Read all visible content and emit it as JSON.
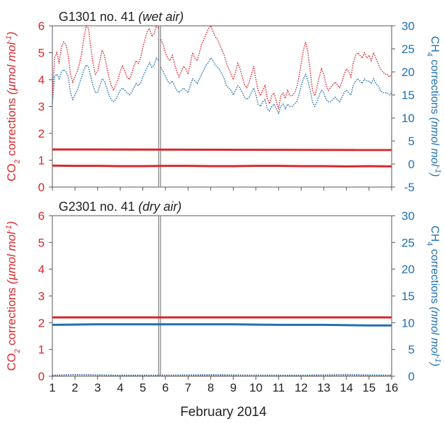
{
  "xlabel": "February 2014",
  "colors": {
    "co2": "#d9262b",
    "ch4": "#1f6fb2",
    "axis": "#555555",
    "gap": "#888888"
  },
  "chart_data": [
    {
      "type": "line",
      "title_main": "G1301 no. 41 ",
      "title_note": "(wet air)",
      "ylabel_left": {
        "pre": "CO",
        "sub": "2",
        "mid": " corrections ",
        "unit": "(µmol mol",
        "sup": "-1",
        "close": ")"
      },
      "ylabel_right": {
        "pre": "CH",
        "sub": "4",
        "mid": " corrections ",
        "unit": "(nmol mol",
        "sup": "-1",
        "close": ")"
      },
      "xlim": [
        1,
        16
      ],
      "ylim_left": [
        0,
        6
      ],
      "ylim_right": [
        -5,
        30
      ],
      "xticks": [
        "1",
        "2",
        "3",
        "4",
        "5",
        "6",
        "7",
        "8",
        "9",
        "10",
        "11",
        "12",
        "13",
        "14",
        "15",
        "16"
      ],
      "yticks_left": [
        "0",
        "1",
        "2",
        "3",
        "4",
        "5",
        "6"
      ],
      "yticks_right": [
        "-5",
        "0",
        "5",
        "10",
        "15",
        "20",
        "25",
        "30"
      ],
      "data_gap": [
        5.7,
        5.78
      ],
      "series": [
        {
          "axis": "left",
          "style": "dotted",
          "x": [
            1.0,
            1.1,
            1.2,
            1.3,
            1.4,
            1.5,
            1.6,
            1.7,
            1.8,
            1.9,
            2.0,
            2.1,
            2.2,
            2.3,
            2.4,
            2.5,
            2.6,
            2.7,
            2.8,
            2.9,
            3.0,
            3.1,
            3.2,
            3.3,
            3.4,
            3.5,
            3.6,
            3.7,
            3.8,
            3.9,
            4.0,
            4.1,
            4.2,
            4.3,
            4.4,
            4.5,
            4.6,
            4.7,
            4.8,
            4.9,
            5.0,
            5.1,
            5.2,
            5.3,
            5.4,
            5.5,
            5.6,
            5.7,
            null,
            5.8,
            5.9,
            6.0,
            6.1,
            6.2,
            6.3,
            6.4,
            6.5,
            6.6,
            6.7,
            6.8,
            6.9,
            7.0,
            7.1,
            7.2,
            7.3,
            7.4,
            7.5,
            7.6,
            7.7,
            7.8,
            7.9,
            8.0,
            8.1,
            8.2,
            8.3,
            8.4,
            8.5,
            8.6,
            8.7,
            8.8,
            8.9,
            9.0,
            9.1,
            9.2,
            9.3,
            9.4,
            9.5,
            9.6,
            9.7,
            9.8,
            9.9,
            10.0,
            10.1,
            10.2,
            10.3,
            10.4,
            10.5,
            10.6,
            10.7,
            10.8,
            10.9,
            11.0,
            11.1,
            11.2,
            11.3,
            11.4,
            11.5,
            11.6,
            11.7,
            11.8,
            11.9,
            12.0,
            12.1,
            12.2,
            12.3,
            12.4,
            12.5,
            12.6,
            12.7,
            12.8,
            12.9,
            13.0,
            13.1,
            13.2,
            13.3,
            13.4,
            13.5,
            13.6,
            13.7,
            13.8,
            13.9,
            14.0,
            14.1,
            14.2,
            14.3,
            14.4,
            14.5,
            14.6,
            14.7,
            14.8,
            14.9,
            15.0,
            15.1,
            15.2,
            15.3,
            15.4,
            15.5,
            15.6,
            15.7,
            15.8,
            15.9,
            16.0
          ],
          "y": [
            3.4,
            4.8,
            5.0,
            4.6,
            5.2,
            5.4,
            5.3,
            4.9,
            4.2,
            3.9,
            4.1,
            4.3,
            4.6,
            5.0,
            5.6,
            6.0,
            5.9,
            5.2,
            4.6,
            4.2,
            4.3,
            4.7,
            5.1,
            4.9,
            4.5,
            4.1,
            3.8,
            3.6,
            3.8,
            4.0,
            4.3,
            4.5,
            4.3,
            4.1,
            4.0,
            4.2,
            4.5,
            4.7,
            4.6,
            4.8,
            5.2,
            5.5,
            5.8,
            5.9,
            5.6,
            5.7,
            6.0,
            5.9,
            null,
            5.5,
            5.3,
            5.0,
            4.8,
            4.7,
            4.9,
            4.6,
            4.3,
            4.1,
            4.3,
            4.5,
            4.4,
            4.2,
            4.6,
            5.0,
            4.8,
            4.7,
            5.0,
            5.3,
            5.5,
            5.7,
            5.9,
            6.0,
            5.8,
            5.6,
            5.5,
            5.3,
            5.1,
            4.9,
            4.6,
            4.4,
            4.2,
            4.0,
            4.3,
            4.6,
            4.4,
            4.1,
            3.8,
            3.7,
            3.9,
            4.2,
            4.5,
            4.0,
            3.6,
            3.4,
            3.6,
            3.8,
            3.3,
            3.1,
            3.4,
            3.5,
            3.2,
            2.9,
            3.4,
            3.5,
            3.3,
            3.6,
            3.4,
            3.4,
            3.5,
            3.7,
            4.1,
            4.6,
            5.1,
            5.4,
            5.0,
            4.3,
            3.6,
            3.4,
            3.7,
            4.1,
            4.4,
            4.2,
            3.8,
            3.6,
            3.7,
            3.8,
            3.9,
            3.8,
            3.7,
            3.9,
            4.2,
            4.4,
            4.3,
            4.1,
            4.6,
            4.9,
            5.0,
            4.9,
            4.8,
            5.0,
            4.8,
            4.9,
            4.7,
            5.0,
            4.8,
            4.6,
            4.4,
            4.3,
            4.2,
            4.2,
            4.1,
            4.2
          ]
        },
        {
          "axis": "right",
          "style": "dotted",
          "x": [
            1.0,
            1.1,
            1.2,
            1.3,
            1.4,
            1.5,
            1.6,
            1.7,
            1.8,
            1.9,
            2.0,
            2.1,
            2.2,
            2.3,
            2.4,
            2.5,
            2.6,
            2.7,
            2.8,
            2.9,
            3.0,
            3.1,
            3.2,
            3.3,
            3.4,
            3.5,
            3.6,
            3.7,
            3.8,
            3.9,
            4.0,
            4.1,
            4.2,
            4.3,
            4.4,
            4.5,
            4.6,
            4.7,
            4.8,
            4.9,
            5.0,
            5.1,
            5.2,
            5.3,
            5.4,
            5.5,
            5.6,
            5.7,
            null,
            5.8,
            5.9,
            6.0,
            6.1,
            6.2,
            6.3,
            6.4,
            6.5,
            6.6,
            6.7,
            6.8,
            6.9,
            7.0,
            7.1,
            7.2,
            7.3,
            7.4,
            7.5,
            7.6,
            7.7,
            7.8,
            7.9,
            8.0,
            8.1,
            8.2,
            8.3,
            8.4,
            8.5,
            8.6,
            8.7,
            8.8,
            8.9,
            9.0,
            9.1,
            9.2,
            9.3,
            9.4,
            9.5,
            9.6,
            9.7,
            9.8,
            9.9,
            10.0,
            10.1,
            10.2,
            10.3,
            10.4,
            10.5,
            10.6,
            10.7,
            10.8,
            10.9,
            11.0,
            11.1,
            11.2,
            11.3,
            11.4,
            11.5,
            11.6,
            11.7,
            11.8,
            11.9,
            12.0,
            12.1,
            12.2,
            12.3,
            12.4,
            12.5,
            12.6,
            12.7,
            12.8,
            12.9,
            13.0,
            13.1,
            13.2,
            13.3,
            13.4,
            13.5,
            13.6,
            13.7,
            13.8,
            13.9,
            14.0,
            14.1,
            14.2,
            14.3,
            14.4,
            14.5,
            14.6,
            14.7,
            14.8,
            14.9,
            15.0,
            15.1,
            15.2,
            15.3,
            15.4,
            15.5,
            15.6,
            15.7,
            15.8,
            15.9,
            16.0
          ],
          "y": [
            13.0,
            19.0,
            19.5,
            18.5,
            20.0,
            20.5,
            20.0,
            19.0,
            15.5,
            14.0,
            15.0,
            16.0,
            17.5,
            19.0,
            20.5,
            21.5,
            21.0,
            19.0,
            17.0,
            15.5,
            15.5,
            17.0,
            18.5,
            18.0,
            16.5,
            15.0,
            14.0,
            13.5,
            14.0,
            15.0,
            16.0,
            16.5,
            16.0,
            15.5,
            15.0,
            15.5,
            16.5,
            17.5,
            17.0,
            17.5,
            19.0,
            20.0,
            21.0,
            22.0,
            21.0,
            21.5,
            23.0,
            22.5,
            null,
            21.0,
            20.0,
            19.0,
            18.0,
            17.5,
            18.0,
            17.0,
            16.0,
            15.5,
            16.0,
            16.5,
            16.0,
            15.5,
            17.0,
            18.5,
            18.0,
            17.5,
            18.5,
            19.5,
            20.5,
            21.5,
            22.0,
            23.0,
            22.5,
            21.5,
            21.0,
            20.5,
            19.5,
            18.5,
            17.0,
            16.5,
            16.0,
            15.0,
            16.0,
            17.0,
            16.5,
            15.5,
            14.5,
            14.0,
            14.5,
            15.5,
            16.5,
            15.0,
            13.0,
            12.5,
            13.5,
            14.0,
            12.0,
            11.5,
            12.5,
            13.0,
            12.0,
            11.0,
            12.5,
            13.0,
            12.0,
            13.0,
            12.5,
            12.5,
            13.0,
            13.5,
            15.0,
            17.0,
            18.5,
            19.5,
            18.0,
            16.0,
            13.5,
            12.5,
            13.5,
            15.0,
            16.0,
            15.5,
            14.0,
            13.5,
            13.5,
            14.0,
            14.5,
            14.0,
            13.5,
            14.5,
            15.5,
            16.0,
            15.5,
            15.0,
            17.0,
            18.0,
            18.5,
            18.0,
            17.5,
            18.5,
            18.0,
            18.0,
            17.5,
            18.5,
            17.5,
            17.0,
            16.0,
            15.5,
            15.5,
            15.5,
            15.0,
            15.5
          ]
        },
        {
          "axis": "left",
          "style": "solid",
          "x": [
            1,
            16
          ],
          "y": [
            1.4,
            1.38
          ]
        },
        {
          "axis": "left",
          "style": "solid",
          "x": [
            1,
            2,
            3,
            4,
            5,
            6,
            7,
            8,
            9,
            10,
            11,
            12,
            13,
            14,
            15,
            16
          ],
          "y": [
            0.8,
            0.79,
            0.79,
            0.78,
            0.78,
            0.79,
            0.79,
            0.78,
            0.78,
            0.79,
            0.79,
            0.78,
            0.78,
            0.77,
            0.78,
            0.77
          ]
        }
      ]
    },
    {
      "type": "line",
      "title_main": "G2301 no. 41 ",
      "title_note": "(dry air)",
      "ylabel_left": {
        "pre": "CO",
        "sub": "2",
        "mid": " corrections ",
        "unit": "(µmol mol",
        "sup": "-1",
        "close": ")"
      },
      "ylabel_right": {
        "pre": "CH",
        "sub": "4",
        "mid": " corrections ",
        "unit": "(nmol mol",
        "sup": "-1",
        "close": ")"
      },
      "xlim": [
        1,
        16
      ],
      "ylim_left": [
        0,
        6
      ],
      "ylim_right": [
        0,
        30
      ],
      "xticks": [
        "1",
        "2",
        "3",
        "4",
        "5",
        "6",
        "7",
        "8",
        "9",
        "10",
        "11",
        "12",
        "13",
        "14",
        "15",
        "16"
      ],
      "yticks_left": [
        "0",
        "1",
        "2",
        "3",
        "4",
        "5",
        "6"
      ],
      "yticks_right": [
        "0",
        "5",
        "10",
        "15",
        "20",
        "25",
        "30"
      ],
      "data_gap": [
        5.7,
        5.78
      ],
      "series": [
        {
          "axis": "left",
          "style": "solid",
          "x": [
            1,
            16
          ],
          "y": [
            2.2,
            2.2
          ]
        },
        {
          "axis": "right",
          "style": "solid",
          "x": [
            1,
            3,
            5,
            7,
            9,
            11,
            13,
            15,
            16
          ],
          "y": [
            9.6,
            9.7,
            9.7,
            9.7,
            9.7,
            9.6,
            9.6,
            9.5,
            9.5
          ]
        },
        {
          "axis": "left",
          "style": "dotted",
          "x": [
            1,
            2,
            4,
            6,
            8,
            10,
            12,
            14,
            16
          ],
          "y": [
            0.03,
            0.05,
            0.03,
            0.04,
            0.03,
            0.04,
            0.03,
            0.04,
            0.03
          ]
        },
        {
          "axis": "right",
          "style": "dotted",
          "x": [
            1,
            2,
            4,
            6,
            8,
            10,
            12,
            14,
            16
          ],
          "y": [
            0.2,
            0.3,
            0.2,
            0.2,
            0.3,
            0.2,
            0.2,
            0.3,
            0.2
          ]
        }
      ]
    }
  ]
}
